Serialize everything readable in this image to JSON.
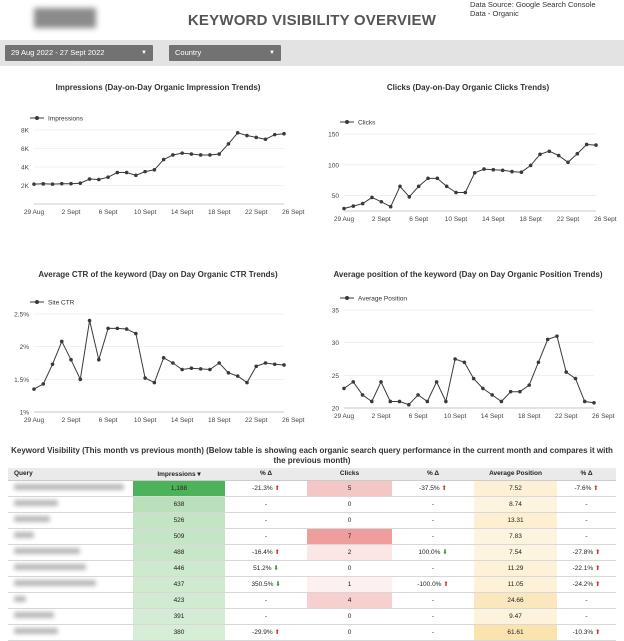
{
  "header": {
    "title": "KEYWORD VISIBILITY OVERVIEW",
    "source_line1": "Data Source: Google Search Console",
    "source_line2": "Data - Organic"
  },
  "filters": {
    "date_range": "29 Aug 2022 - 27 Sept 2022",
    "country_label": "Country"
  },
  "colors": {
    "line": "#3a3a3a",
    "grid": "#e6e6e6",
    "header_bg": "#e3e3e3"
  },
  "chart_data": [
    {
      "type": "line",
      "title": "Impressions (Day-on-Day Organic Impression Trends)",
      "series": [
        {
          "name": "Impressions",
          "values": [
            2150,
            2180,
            2150,
            2200,
            2200,
            2250,
            2700,
            2650,
            2900,
            3400,
            3400,
            3100,
            3500,
            3700,
            4800,
            5300,
            5500,
            5400,
            5300,
            5300,
            5400,
            6500,
            7700,
            7400,
            7200,
            7000,
            7500,
            7600
          ]
        }
      ],
      "x_tick_labels": [
        "29 Aug",
        "2 Sept",
        "6 Sept",
        "10 Sept",
        "14 Sept",
        "18 Sept",
        "22 Sept",
        "26 Sept"
      ],
      "ylim": [
        0,
        8000
      ],
      "y_ticks": [
        2000,
        4000,
        6000,
        8000
      ],
      "y_tick_labels": [
        "2K",
        "4K",
        "6K",
        "8K"
      ],
      "legend": "top-left"
    },
    {
      "type": "line",
      "title": "Clicks (Day-on-Day Organic Clicks Trends)",
      "series": [
        {
          "name": "Clicks",
          "values": [
            29,
            33,
            37,
            47,
            40,
            32,
            65,
            48,
            65,
            78,
            78,
            65,
            55,
            55,
            87,
            93,
            92,
            91,
            89,
            88,
            99,
            117,
            122,
            115,
            104,
            118,
            133,
            132
          ]
        }
      ],
      "x_tick_labels": [
        "29 Aug",
        "2 Sept",
        "6 Sept",
        "10 Sept",
        "14 Sept",
        "18 Sept",
        "22 Sept",
        "26 Sept"
      ],
      "ylim": [
        25,
        150
      ],
      "y_ticks": [
        50,
        100,
        150
      ],
      "y_tick_labels": [
        "50",
        "100",
        "150"
      ],
      "legend": "top-left"
    },
    {
      "type": "line",
      "title": "Average CTR of the keyword (Day on Day Organic CTR Trends)",
      "series": [
        {
          "name": "Site CTR",
          "values": [
            1.35,
            1.43,
            1.73,
            2.08,
            1.8,
            1.5,
            2.4,
            1.8,
            2.28,
            2.28,
            2.27,
            2.2,
            1.52,
            1.45,
            1.83,
            1.75,
            1.65,
            1.67,
            1.66,
            1.65,
            1.75,
            1.6,
            1.55,
            1.45,
            1.7,
            1.75,
            1.73,
            1.72
          ]
        }
      ],
      "x_tick_labels": [
        "29 Aug",
        "2 Sept",
        "6 Sept",
        "10 Sept",
        "14 Sept",
        "18 Sept",
        "22 Sept",
        "26 Sept"
      ],
      "ylim": [
        1,
        2.5
      ],
      "y_ticks": [
        1,
        1.5,
        2,
        2.5
      ],
      "y_tick_labels": [
        "1%",
        "1.5%",
        "2%",
        "2.5%"
      ],
      "legend": "top-left"
    },
    {
      "type": "line",
      "title": "Average position of the keyword (Day on Day Organic Position Trends)",
      "series": [
        {
          "name": "Average Position",
          "values": [
            23,
            24,
            22,
            21,
            24,
            21,
            21,
            20.5,
            22,
            21,
            24,
            21,
            27.5,
            27,
            24.5,
            23,
            22,
            21,
            22.5,
            22.5,
            23.5,
            27,
            30.5,
            31,
            25.5,
            24.5,
            21,
            20.8
          ]
        }
      ],
      "x_tick_labels": [
        "29 Aug",
        "2 Sept",
        "6 Sept",
        "10 Sept",
        "14 Sept",
        "18 Sept",
        "22 Sept",
        "26 Sept"
      ],
      "ylim": [
        20,
        35
      ],
      "y_ticks": [
        20,
        25,
        30,
        35
      ],
      "y_tick_labels": [
        "20",
        "25",
        "30",
        "35"
      ],
      "legend": "top-left"
    }
  ],
  "table": {
    "title": "Keyword Visibility (This month vs previous month) (Below table is showing each organic search query performance in the current month and compares it with the previous month)",
    "columns": [
      "Query",
      "Impressions ▾",
      "% Δ",
      "Clicks",
      "% Δ",
      "Average Position",
      "% Δ"
    ],
    "rows": [
      {
        "imp": "1,188",
        "imp_d": "-21.3%",
        "imp_dir": "up",
        "clk": "5",
        "clk_d": "-37.5%",
        "clk_dir": "up",
        "pos": "7.52",
        "pos_d": "-7.6%",
        "pos_dir": "up",
        "imp_bg": "#4db35a",
        "clk_bg": "#f4c7c7",
        "pos_bg": "#fdf0d4"
      },
      {
        "imp": "638",
        "imp_d": "-",
        "imp_dir": "",
        "clk": "0",
        "clk_d": "-",
        "clk_dir": "",
        "pos": "8.74",
        "pos_d": "-",
        "pos_dir": "",
        "imp_bg": "#b9e0bb",
        "clk_bg": "#ffffff",
        "pos_bg": "#fdf4e0"
      },
      {
        "imp": "526",
        "imp_d": "-",
        "imp_dir": "",
        "clk": "0",
        "clk_d": "-",
        "clk_dir": "",
        "pos": "13.31",
        "pos_d": "-",
        "pos_dir": "",
        "imp_bg": "#c3e5c4",
        "clk_bg": "#ffffff",
        "pos_bg": "#fdefd0"
      },
      {
        "imp": "509",
        "imp_d": "-",
        "imp_dir": "",
        "clk": "7",
        "clk_d": "-",
        "clk_dir": "",
        "pos": "7.83",
        "pos_d": "-",
        "pos_dir": "",
        "imp_bg": "#c5e6c6",
        "clk_bg": "#ef9e9e",
        "pos_bg": "#fdf4e0"
      },
      {
        "imp": "488",
        "imp_d": "-16.4%",
        "imp_dir": "up",
        "clk": "2",
        "clk_d": "100.0%",
        "clk_dir": "down",
        "pos": "7.54",
        "pos_d": "-27.8%",
        "pos_dir": "up",
        "imp_bg": "#c8e7c9",
        "clk_bg": "#fbe5e5",
        "pos_bg": "#fdf4e0"
      },
      {
        "imp": "446",
        "imp_d": "51.2%",
        "imp_dir": "down",
        "clk": "0",
        "clk_d": "-",
        "clk_dir": "",
        "pos": "11.29",
        "pos_d": "-22.1%",
        "pos_dir": "up",
        "imp_bg": "#cde9ce",
        "clk_bg": "#ffffff",
        "pos_bg": "#fdf1d8"
      },
      {
        "imp": "437",
        "imp_d": "350.5%",
        "imp_dir": "down",
        "clk": "1",
        "clk_d": "-100.0%",
        "clk_dir": "up",
        "pos": "11.05",
        "pos_d": "-24.2%",
        "pos_dir": "up",
        "imp_bg": "#cfeacf",
        "clk_bg": "#fdf0f0",
        "pos_bg": "#fdf1d8"
      },
      {
        "imp": "423",
        "imp_d": "-",
        "imp_dir": "",
        "clk": "4",
        "clk_d": "-",
        "clk_dir": "",
        "pos": "24.66",
        "pos_d": "-",
        "pos_dir": "",
        "imp_bg": "#d1ebd2",
        "clk_bg": "#f6cfcf",
        "pos_bg": "#fbe7bd"
      },
      {
        "imp": "391",
        "imp_d": "-",
        "imp_dir": "",
        "clk": "0",
        "clk_d": "-",
        "clk_dir": "",
        "pos": "9.47",
        "pos_d": "-",
        "pos_dir": "",
        "imp_bg": "#d4ecd5",
        "clk_bg": "#ffffff",
        "pos_bg": "#fdf3dc"
      },
      {
        "imp": "380",
        "imp_d": "-29.9%",
        "imp_dir": "up",
        "clk": "0",
        "clk_d": "-",
        "clk_dir": "",
        "pos": "61.61",
        "pos_d": "-10.3%",
        "pos_dir": "up",
        "imp_bg": "#d6edd6",
        "clk_bg": "#ffffff",
        "pos_bg": "#fbe3ad"
      }
    ]
  }
}
